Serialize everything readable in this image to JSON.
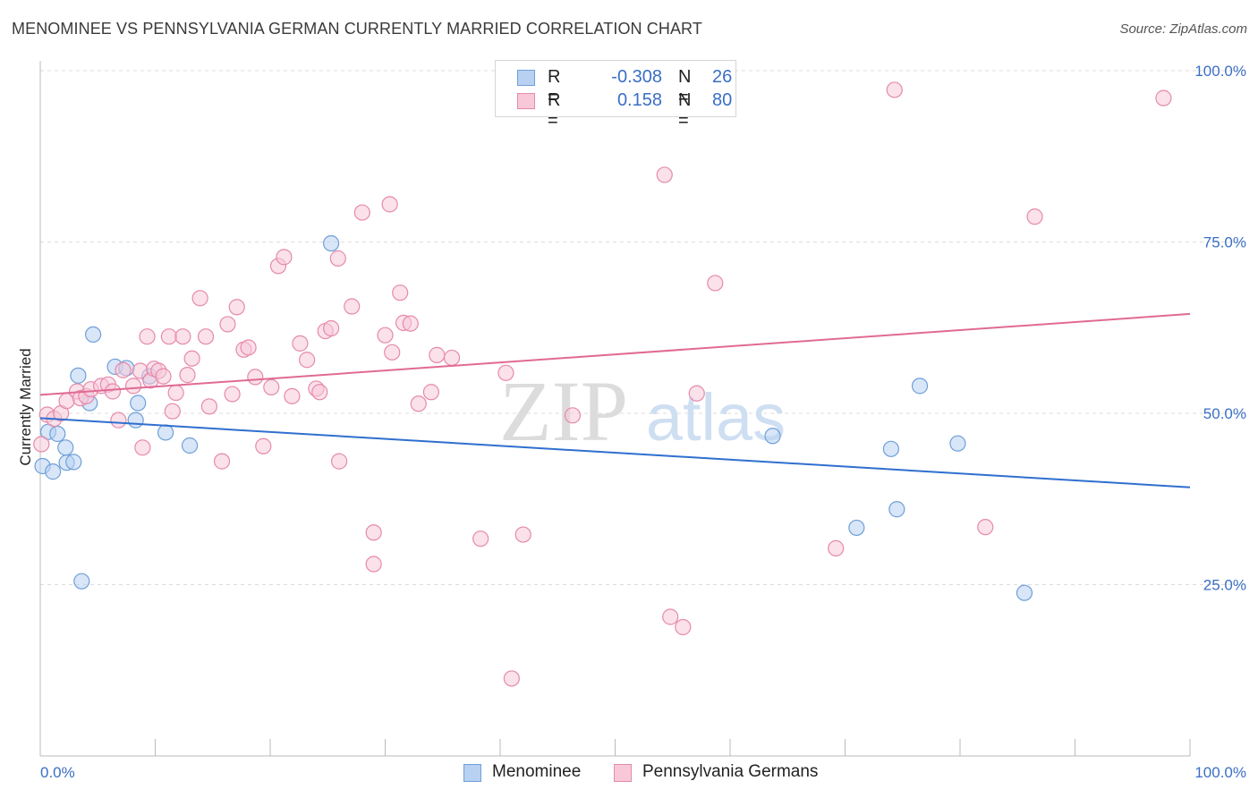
{
  "title": "MENOMINEE VS PENNSYLVANIA GERMAN CURRENTLY MARRIED CORRELATION CHART",
  "source": "Source: ZipAtlas.com",
  "watermark": {
    "zip": "ZIP",
    "atlas": "atlas"
  },
  "legend": {
    "r_label": "R =",
    "n_label": "N =",
    "rows": [
      {
        "r": "-0.308",
        "n": "26",
        "swatch_fill": "#b8d1f2",
        "swatch_stroke": "#6f9fd8"
      },
      {
        "r": "0.158",
        "n": "80",
        "swatch_fill": "#f8c8d8",
        "swatch_stroke": "#e58aab"
      }
    ]
  },
  "bottom_legend": [
    "Menominee",
    "Pennsylvania Germans"
  ],
  "chart_data": {
    "type": "scatter",
    "title": "MENOMINEE VS PENNSYLVANIA GERMAN CURRENTLY MARRIED CORRELATION CHART",
    "xlabel": "",
    "ylabel": "Currently Married",
    "xlim": [
      0,
      100
    ],
    "ylim": [
      0,
      100
    ],
    "x_tick_labels": [
      "0.0%",
      "100.0%"
    ],
    "y_ticks": [
      25,
      50,
      75,
      100
    ],
    "y_tick_labels": [
      "25.0%",
      "50.0%",
      "75.0%",
      "100.0%"
    ],
    "grid": true,
    "legend_position": "top-center",
    "series": [
      {
        "name": "Menominee",
        "color": "#6f9fd8",
        "fill": "#b8d1f2",
        "line_color": "#2f6fcf",
        "trend": [
          [
            0,
            49.3
          ],
          [
            100,
            39.2
          ]
        ],
        "points": [
          [
            0.2,
            42.3
          ],
          [
            1.1,
            41.5
          ],
          [
            0.7,
            47.3
          ],
          [
            1.5,
            47.0
          ],
          [
            2.2,
            45.0
          ],
          [
            2.3,
            42.8
          ],
          [
            2.9,
            42.9
          ],
          [
            3.3,
            55.5
          ],
          [
            3.6,
            25.5
          ],
          [
            4.3,
            51.5
          ],
          [
            4.6,
            61.5
          ],
          [
            6.5,
            56.8
          ],
          [
            7.5,
            56.6
          ],
          [
            8.3,
            49.0
          ],
          [
            8.5,
            51.5
          ],
          [
            9.5,
            55.4
          ],
          [
            10.9,
            47.2
          ],
          [
            13.0,
            45.3
          ],
          [
            25.3,
            74.8
          ],
          [
            63.7,
            46.7
          ],
          [
            71.0,
            33.3
          ],
          [
            74.0,
            44.8
          ],
          [
            74.5,
            36.0
          ],
          [
            76.5,
            54.0
          ],
          [
            79.8,
            45.6
          ],
          [
            85.6,
            23.8
          ]
        ]
      },
      {
        "name": "Pennsylvania Germans",
        "color": "#e58aab",
        "fill": "#f8c8d8",
        "line_color": "#e06a93",
        "trend": [
          [
            0,
            52.7
          ],
          [
            100,
            64.5
          ]
        ],
        "points": [
          [
            0.1,
            45.5
          ],
          [
            0.6,
            49.8
          ],
          [
            1.2,
            49.2
          ],
          [
            1.8,
            50.0
          ],
          [
            2.3,
            51.8
          ],
          [
            3.2,
            53.2
          ],
          [
            3.5,
            52.2
          ],
          [
            4.0,
            52.5
          ],
          [
            4.4,
            53.5
          ],
          [
            5.3,
            54.0
          ],
          [
            5.9,
            54.2
          ],
          [
            6.3,
            53.2
          ],
          [
            6.8,
            49.0
          ],
          [
            7.2,
            56.3
          ],
          [
            8.1,
            54.0
          ],
          [
            8.7,
            56.2
          ],
          [
            8.9,
            45.0
          ],
          [
            9.3,
            61.2
          ],
          [
            9.6,
            54.8
          ],
          [
            9.9,
            56.5
          ],
          [
            10.3,
            56.2
          ],
          [
            10.7,
            55.4
          ],
          [
            11.2,
            61.2
          ],
          [
            11.5,
            50.3
          ],
          [
            11.8,
            53.0
          ],
          [
            12.4,
            61.2
          ],
          [
            12.8,
            55.6
          ],
          [
            13.2,
            58.0
          ],
          [
            13.9,
            66.8
          ],
          [
            14.4,
            61.2
          ],
          [
            14.7,
            51.0
          ],
          [
            15.8,
            43.0
          ],
          [
            16.3,
            63.0
          ],
          [
            16.7,
            52.8
          ],
          [
            17.1,
            65.5
          ],
          [
            17.7,
            59.3
          ],
          [
            18.1,
            59.6
          ],
          [
            18.7,
            55.3
          ],
          [
            19.4,
            45.2
          ],
          [
            20.1,
            53.8
          ],
          [
            20.7,
            71.5
          ],
          [
            21.2,
            72.8
          ],
          [
            21.9,
            52.5
          ],
          [
            22.6,
            60.2
          ],
          [
            23.2,
            57.8
          ],
          [
            24.0,
            53.6
          ],
          [
            24.3,
            53.1
          ],
          [
            24.8,
            62.0
          ],
          [
            25.3,
            62.4
          ],
          [
            25.9,
            72.6
          ],
          [
            26.0,
            43.0
          ],
          [
            27.1,
            65.6
          ],
          [
            28.0,
            79.3
          ],
          [
            29.0,
            32.6
          ],
          [
            29.0,
            28.0
          ],
          [
            30.0,
            61.4
          ],
          [
            30.4,
            80.5
          ],
          [
            30.6,
            58.9
          ],
          [
            31.3,
            67.6
          ],
          [
            31.6,
            63.2
          ],
          [
            32.2,
            63.1
          ],
          [
            32.9,
            51.4
          ],
          [
            34.0,
            53.1
          ],
          [
            34.5,
            58.5
          ],
          [
            35.8,
            58.1
          ],
          [
            38.3,
            31.7
          ],
          [
            40.5,
            55.9
          ],
          [
            41.0,
            11.3
          ],
          [
            42.0,
            32.3
          ],
          [
            46.3,
            49.7
          ],
          [
            54.3,
            84.8
          ],
          [
            54.8,
            20.3
          ],
          [
            55.9,
            18.8
          ],
          [
            57.1,
            52.9
          ],
          [
            58.7,
            69.0
          ],
          [
            69.2,
            30.3
          ],
          [
            74.3,
            97.2
          ],
          [
            82.2,
            33.4
          ],
          [
            86.5,
            78.7
          ],
          [
            97.7,
            96.0
          ]
        ]
      }
    ]
  }
}
